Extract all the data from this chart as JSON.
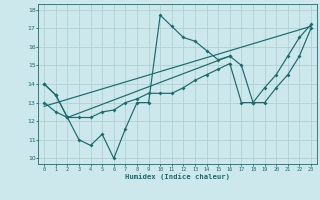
{
  "xlabel": "Humidex (Indice chaleur)",
  "bg_color": "#cce8ec",
  "grid_color": "#aacccc",
  "line_color": "#1a6b6b",
  "xlim": [
    -0.5,
    23.5
  ],
  "ylim": [
    9.7,
    18.3
  ],
  "xticks": [
    0,
    1,
    2,
    3,
    4,
    5,
    6,
    7,
    8,
    9,
    10,
    11,
    12,
    13,
    14,
    15,
    16,
    17,
    18,
    19,
    20,
    21,
    22,
    23
  ],
  "yticks": [
    10,
    11,
    12,
    13,
    14,
    15,
    16,
    17,
    18
  ],
  "line1_x": [
    0,
    1,
    2,
    3,
    4,
    5,
    6,
    7,
    8,
    9,
    10,
    11,
    12,
    13,
    14,
    15,
    16
  ],
  "line1_y": [
    14.0,
    13.4,
    12.2,
    11.0,
    10.7,
    11.3,
    10.0,
    11.6,
    13.0,
    13.0,
    17.7,
    17.1,
    16.5,
    16.3,
    15.8,
    15.3,
    15.5
  ],
  "line2_x": [
    0,
    1,
    2,
    3,
    4,
    5,
    6,
    7,
    8,
    9,
    10,
    11,
    12,
    13,
    14,
    15,
    16,
    17,
    18,
    19,
    20,
    21,
    22,
    23
  ],
  "line2_y": [
    13.0,
    12.5,
    12.2,
    12.2,
    12.2,
    12.5,
    12.6,
    13.0,
    13.2,
    13.5,
    13.5,
    13.5,
    13.8,
    14.2,
    14.5,
    14.8,
    15.1,
    13.0,
    13.0,
    13.8,
    14.5,
    15.5,
    16.5,
    17.2
  ],
  "line3_x": [
    0,
    1,
    2,
    16,
    17,
    18,
    19,
    20,
    21,
    22,
    23
  ],
  "line3_y": [
    14.0,
    13.4,
    12.2,
    15.5,
    15.0,
    13.0,
    13.0,
    13.8,
    14.5,
    15.5,
    17.0
  ],
  "trendline_x": [
    0,
    23
  ],
  "trendline_y": [
    12.8,
    17.1
  ]
}
